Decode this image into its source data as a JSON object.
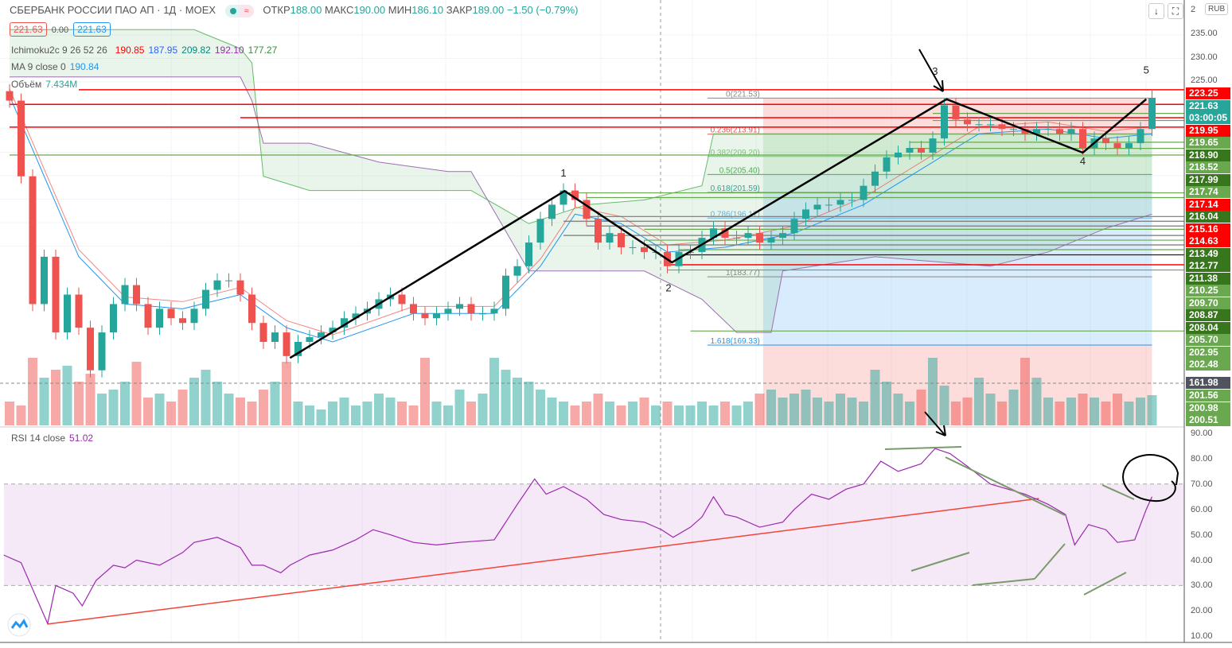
{
  "header": {
    "title": "СБЕРБАНК РОССИИ ПАО АП · 1Д · MOEX",
    "wave": "≈",
    "open_label": "ОТКР",
    "open": "188.00",
    "high_label": "МАКС",
    "high": "190.00",
    "low_label": "МИН",
    "low": "186.10",
    "close_label": "ЗАКР",
    "close": "189.00",
    "change": "−1.50 (−0.79%)"
  },
  "quote": {
    "bid": "221.63",
    "spread": "0.00",
    "ask": "221.63"
  },
  "indicators": {
    "ichimoku": {
      "label": "Ichimoku2c 9 26 52 26",
      "values": [
        "190.85",
        "187.95",
        "209.82",
        "192.10",
        "177.27"
      ],
      "colors": [
        "#ff0000",
        "#2962ff",
        "#00897b",
        "#9c27b0",
        "#388e3c"
      ]
    },
    "ma": {
      "label": "MA 9 close 0",
      "value": "190.84"
    },
    "volume": {
      "label": "Объём",
      "value": "7.434M"
    }
  },
  "toolbar": {
    "down_arrow": "↓",
    "fullscreen": "⛶",
    "currency": "RUB"
  },
  "colors": {
    "up": "#26a69a",
    "down": "#ef5350",
    "red": "#ff0000",
    "dark_green": "#38761d",
    "light_green": "#6aa84f",
    "teal": "#26a69a",
    "rsi": "#9c27b0"
  },
  "price_axis": {
    "ticks": [
      "235.00",
      "230.00",
      "225.00"
    ],
    "partial_top": "2",
    "labels": [
      {
        "t": "223.25",
        "c": "red"
      },
      {
        "t": "221.63",
        "c": "teal"
      },
      {
        "t": "03:00:05",
        "c": "teal"
      },
      {
        "t": "219.95",
        "c": "red"
      },
      {
        "t": "219.65",
        "c": "light_green"
      },
      {
        "t": "218.90",
        "c": "dark_green"
      },
      {
        "t": "218.52",
        "c": "light_green"
      },
      {
        "t": "217.99",
        "c": "dark_green"
      },
      {
        "t": "217.74",
        "c": "light_green"
      },
      {
        "t": "217.14",
        "c": "red"
      },
      {
        "t": "216.04",
        "c": "dark_green"
      },
      {
        "t": "215.16",
        "c": "red"
      },
      {
        "t": "214.63",
        "c": "red"
      },
      {
        "t": "213.49",
        "c": "dark_green"
      },
      {
        "t": "212.77",
        "c": "dark_green"
      },
      {
        "t": "211.38",
        "c": "dark_green"
      },
      {
        "t": "210.25",
        "c": "light_green"
      },
      {
        "t": "209.70",
        "c": "light_green"
      },
      {
        "t": "208.87",
        "c": "dark_green"
      },
      {
        "t": "208.04",
        "c": "dark_green"
      },
      {
        "t": "205.70",
        "c": "light_green"
      },
      {
        "t": "202.95",
        "c": "light_green"
      },
      {
        "t": "202.48",
        "c": "light_green"
      },
      {
        "t": "161.98",
        "c": "crosshair"
      },
      {
        "t": "201.56",
        "c": "light_green"
      },
      {
        "t": "200.98",
        "c": "light_green"
      },
      {
        "t": "200.51",
        "c": "light_green"
      }
    ]
  },
  "chart_data": {
    "type": "candlestick",
    "title": "СБЕРБАНК РОССИИ ПАО АП · 1Д · MOEX",
    "ylim": [
      156,
      237
    ],
    "closes": [
      221,
      205,
      178,
      188,
      172,
      180,
      173,
      164,
      172,
      178,
      182,
      178,
      173,
      177,
      175,
      174,
      177,
      181,
      183,
      183,
      180,
      174,
      170,
      172,
      167,
      170,
      171,
      172,
      173,
      175,
      176,
      177,
      179,
      180,
      178,
      176,
      175,
      176,
      177,
      178,
      176,
      176,
      177,
      184,
      186,
      191,
      196,
      199,
      202,
      200,
      196,
      191,
      193,
      190,
      190,
      189,
      189,
      186,
      189,
      189,
      192,
      194,
      192,
      192,
      193,
      191,
      192,
      193,
      196,
      198,
      199,
      199,
      200,
      200,
      203,
      206,
      209,
      210,
      211,
      210,
      213,
      220,
      217,
      216,
      216,
      216,
      215,
      215,
      214,
      215,
      215,
      214,
      215,
      211,
      213,
      212,
      211,
      212,
      215,
      221.6
    ],
    "first_open": 223,
    "volumes": [
      30,
      25,
      85,
      60,
      70,
      75,
      55,
      65,
      40,
      45,
      55,
      80,
      35,
      40,
      30,
      45,
      60,
      70,
      55,
      40,
      35,
      30,
      45,
      55,
      80,
      30,
      25,
      20,
      30,
      35,
      25,
      30,
      40,
      35,
      30,
      25,
      85,
      30,
      25,
      45,
      30,
      40,
      85,
      70,
      60,
      55,
      45,
      35,
      30,
      25,
      30,
      40,
      30,
      25,
      30,
      35,
      25,
      30,
      25,
      25,
      30,
      25,
      30,
      25,
      30,
      40,
      45,
      35,
      40,
      45,
      35,
      30,
      40,
      35,
      30,
      70,
      55,
      40,
      30,
      45,
      85,
      50,
      30,
      35,
      60,
      40,
      30,
      45,
      85,
      60,
      35,
      30,
      35,
      40,
      35,
      30,
      40,
      30,
      35,
      38
    ],
    "ichimoku_span_a": [
      [
        0,
        236
      ],
      [
        16,
        236
      ],
      [
        20,
        232
      ],
      [
        21,
        229
      ],
      [
        22,
        205
      ],
      [
        26,
        202
      ],
      [
        40,
        202
      ],
      [
        45,
        195
      ],
      [
        50,
        199
      ],
      [
        55,
        200
      ],
      [
        60,
        203
      ],
      [
        61,
        214
      ],
      [
        66,
        214
      ],
      [
        70,
        214
      ],
      [
        80,
        214
      ],
      [
        90,
        214
      ],
      [
        99,
        214
      ]
    ],
    "ichimoku_span_b": [
      [
        0,
        226
      ],
      [
        16,
        226
      ],
      [
        20,
        226
      ],
      [
        21,
        221
      ],
      [
        22,
        212
      ],
      [
        26,
        212
      ],
      [
        32,
        208
      ],
      [
        38,
        206
      ],
      [
        40,
        206
      ],
      [
        45,
        185
      ],
      [
        55,
        185
      ],
      [
        60,
        179
      ],
      [
        63,
        172
      ],
      [
        66,
        172
      ],
      [
        67,
        185
      ],
      [
        75,
        188
      ],
      [
        85,
        186
      ],
      [
        90,
        189
      ],
      [
        95,
        194
      ],
      [
        99,
        197
      ]
    ],
    "ma9": [
      [
        0,
        222
      ],
      [
        3,
        205
      ],
      [
        6,
        188
      ],
      [
        10,
        178
      ],
      [
        15,
        177
      ],
      [
        20,
        180
      ],
      [
        24,
        173
      ],
      [
        28,
        170
      ],
      [
        35,
        176
      ],
      [
        42,
        176
      ],
      [
        46,
        186
      ],
      [
        49,
        197
      ],
      [
        53,
        195
      ],
      [
        57,
        189
      ],
      [
        62,
        190
      ],
      [
        68,
        193
      ],
      [
        74,
        199
      ],
      [
        80,
        208
      ],
      [
        84,
        214
      ],
      [
        90,
        215
      ],
      [
        95,
        213
      ],
      [
        99,
        214
      ]
    ],
    "horizontal_lines": [
      {
        "price": 223.3,
        "from": 6,
        "color": "red"
      },
      {
        "price": 220.2,
        "from": 0,
        "color": "red"
      },
      {
        "price": 217.4,
        "from": 20,
        "color": "red"
      },
      {
        "price": 215.4,
        "from": 0,
        "color": "red"
      },
      {
        "price": 209.5,
        "from": 0,
        "color": "green"
      },
      {
        "price": 201.5,
        "from": 48,
        "color": "green"
      },
      {
        "price": 200.5,
        "from": 50,
        "color": "green"
      },
      {
        "price": 196.5,
        "from": 50,
        "color": "gray"
      },
      {
        "price": 195.5,
        "from": 48,
        "color": "gray"
      },
      {
        "price": 194.5,
        "from": 50,
        "color": "gray"
      },
      {
        "price": 193.8,
        "from": 55,
        "color": "green"
      },
      {
        "price": 192.5,
        "from": 48,
        "color": "gray"
      },
      {
        "price": 191.5,
        "from": 55,
        "color": "green"
      },
      {
        "price": 190.5,
        "from": 55,
        "color": "gray"
      },
      {
        "price": 189.5,
        "from": 58,
        "color": "green"
      },
      {
        "price": 188.4,
        "from": 58,
        "color": "black"
      },
      {
        "price": 186.3,
        "from": 57,
        "color": "red"
      },
      {
        "price": 185.2,
        "from": 57,
        "color": "green"
      },
      {
        "price": 172.3,
        "from": 59,
        "color": "green"
      },
      {
        "price": 212.2,
        "from": 78,
        "color": "green"
      },
      {
        "price": 210.9,
        "from": 78,
        "color": "green"
      },
      {
        "price": 216.8,
        "from": 80,
        "color": "green"
      },
      {
        "price": 218.3,
        "from": 80,
        "color": "green"
      }
    ],
    "fib": {
      "from": 65.3,
      "to": 99,
      "levels": [
        {
          "t": "0(221.53)",
          "p": 221.53
        },
        {
          "t": "0.236(213.91)",
          "p": 213.91
        },
        {
          "t": "0.382(209.20)",
          "p": 209.2
        },
        {
          "t": "0.5(205.40)",
          "p": 205.4
        },
        {
          "t": "0.618(201.59)",
          "p": 201.59
        },
        {
          "t": "0.786(196.17)",
          "p": 196.17
        },
        {
          "t": "1(183.77)",
          "p": 183.77
        },
        {
          "t": "1.618(169.33)",
          "p": 169.33
        }
      ]
    },
    "wave_path": [
      [
        24.3,
        166.6
      ],
      [
        48.1,
        201.9
      ],
      [
        57.4,
        186.8
      ],
      [
        81.2,
        221.3
      ],
      [
        93,
        210
      ],
      [
        98.5,
        221.3
      ]
    ],
    "wave_labels": [
      {
        "t": "1",
        "i": 48,
        "p": 205
      },
      {
        "t": "2",
        "i": 57.1,
        "p": 180.7
      },
      {
        "t": "3",
        "i": 80.2,
        "p": 226.5
      },
      {
        "t": "4",
        "i": 93,
        "p": 207.5
      },
      {
        "t": "5",
        "i": 98.5,
        "p": 226.7
      }
    ],
    "rsi": {
      "label": "RSI 14 close",
      "value": "51.02",
      "ylim": [
        10,
        90
      ],
      "ticks": [
        "90.00",
        "80.00",
        "70.00",
        "60.00",
        "50.00",
        "40.00",
        "30.00",
        "20.00",
        "10.00"
      ],
      "band": [
        30,
        70
      ],
      "points": [
        [
          -0.5,
          42
        ],
        [
          1,
          39
        ],
        [
          3.3,
          15
        ],
        [
          4,
          30
        ],
        [
          5.5,
          27
        ],
        [
          6.3,
          22
        ],
        [
          7.5,
          32
        ],
        [
          9,
          38
        ],
        [
          10,
          37
        ],
        [
          11,
          40
        ],
        [
          13,
          38
        ],
        [
          15,
          43
        ],
        [
          16,
          47
        ],
        [
          18,
          49
        ],
        [
          20,
          45
        ],
        [
          21,
          38
        ],
        [
          22,
          38
        ],
        [
          23.5,
          35
        ],
        [
          24.3,
          38
        ],
        [
          26,
          42
        ],
        [
          28,
          44
        ],
        [
          30,
          48
        ],
        [
          31.5,
          52
        ],
        [
          33,
          50
        ],
        [
          35,
          47
        ],
        [
          37,
          46
        ],
        [
          39,
          47
        ],
        [
          42,
          48
        ],
        [
          44,
          62
        ],
        [
          45.5,
          72
        ],
        [
          46.5,
          66
        ],
        [
          48,
          69
        ],
        [
          50,
          64
        ],
        [
          51.5,
          58
        ],
        [
          53,
          56
        ],
        [
          55,
          55
        ],
        [
          56.5,
          52
        ],
        [
          57.5,
          49
        ],
        [
          59,
          53
        ],
        [
          60,
          57
        ],
        [
          61,
          65
        ],
        [
          62,
          58
        ],
        [
          63,
          57
        ],
        [
          65,
          53
        ],
        [
          67,
          55
        ],
        [
          68,
          60
        ],
        [
          69.5,
          66
        ],
        [
          71,
          64
        ],
        [
          72.5,
          68
        ],
        [
          74,
          70
        ],
        [
          75.5,
          79
        ],
        [
          77,
          75
        ],
        [
          79,
          78
        ],
        [
          80.2,
          84
        ],
        [
          81.5,
          82
        ],
        [
          83,
          77
        ],
        [
          85,
          70
        ],
        [
          86.5,
          68
        ],
        [
          88,
          66
        ],
        [
          90,
          62
        ],
        [
          91.5,
          58
        ],
        [
          92.3,
          46
        ],
        [
          93.5,
          54
        ],
        [
          95,
          52
        ],
        [
          96,
          47
        ],
        [
          97.5,
          48
        ],
        [
          98.5,
          60
        ],
        [
          99,
          65
        ]
      ],
      "trendline": [
        [
          3.3,
          14.8
        ],
        [
          89.2,
          64.3
        ]
      ]
    }
  }
}
